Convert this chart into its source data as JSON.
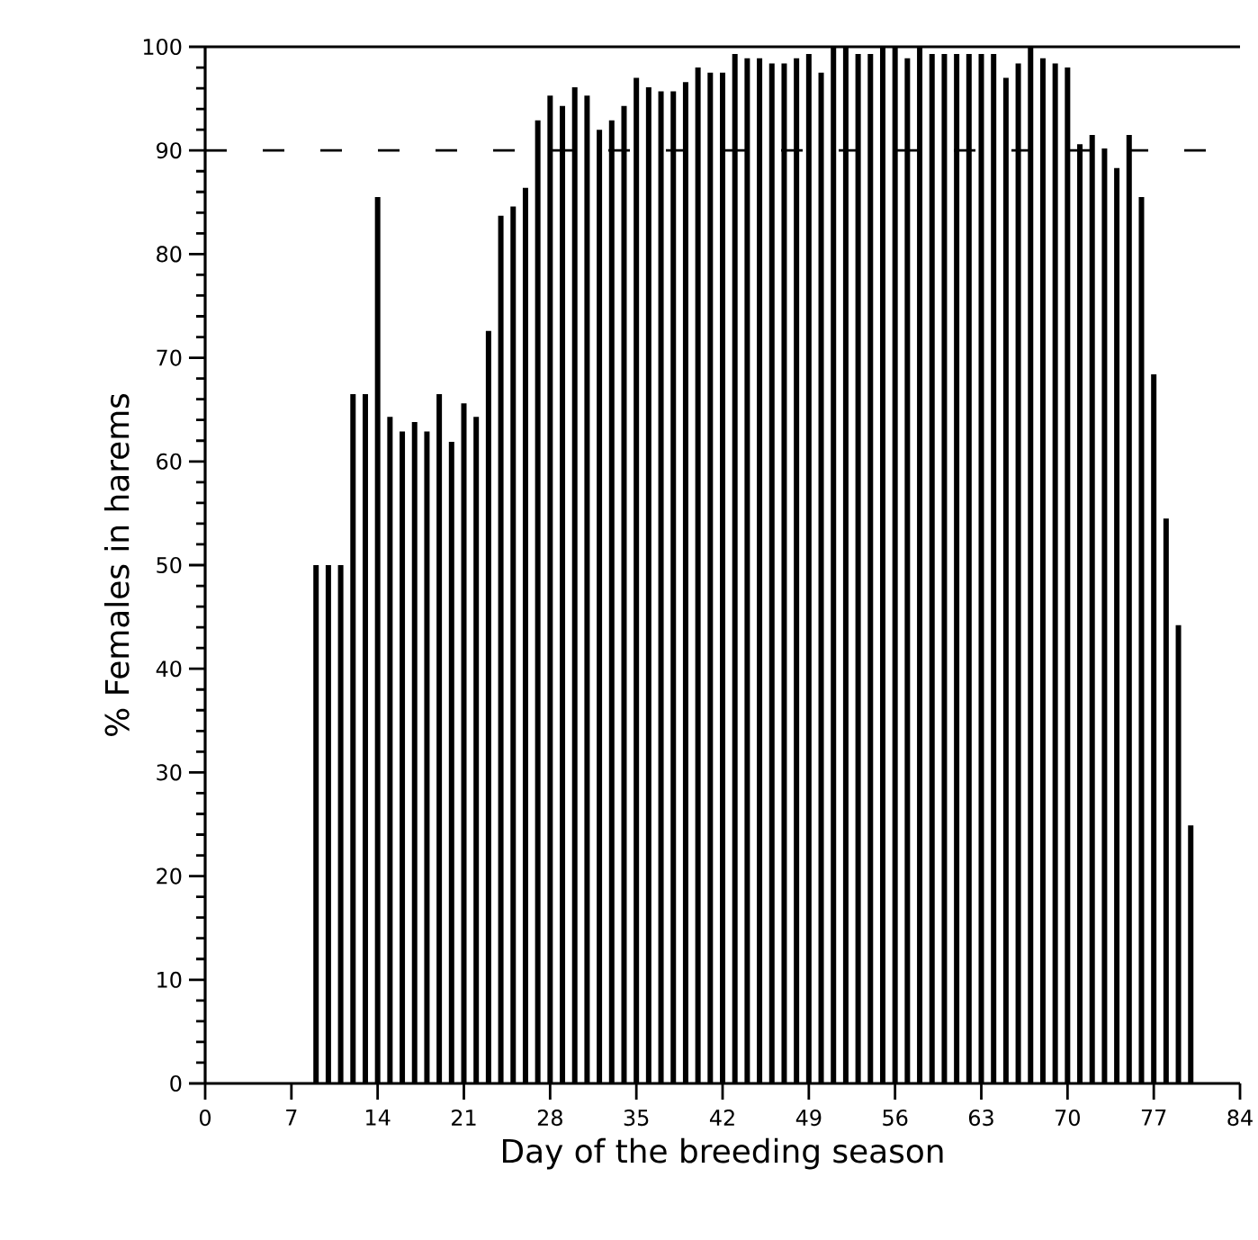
{
  "chart_data": {
    "type": "bar",
    "xlabel": "Day of the breeding season",
    "ylabel": "% Females in harems",
    "x": [
      9,
      10,
      11,
      12,
      13,
      14,
      15,
      16,
      17,
      18,
      19,
      20,
      21,
      22,
      23,
      24,
      25,
      26,
      27,
      28,
      29,
      30,
      31,
      32,
      33,
      34,
      35,
      36,
      37,
      38,
      39,
      40,
      41,
      42,
      43,
      44,
      45,
      46,
      47,
      48,
      49,
      50,
      51,
      52,
      53,
      54,
      55,
      56,
      57,
      58,
      59,
      60,
      61,
      62,
      63,
      64,
      65,
      66,
      67,
      68,
      69,
      70,
      71,
      72,
      73,
      74,
      75,
      76,
      77,
      78,
      79,
      80
    ],
    "values": [
      50,
      50,
      50,
      66.5,
      66.5,
      85.5,
      64.3,
      62.9,
      63.8,
      62.9,
      66.5,
      61.9,
      65.6,
      64.3,
      72.6,
      83.7,
      84.6,
      86.4,
      92.9,
      95.3,
      94.3,
      96.1,
      95.3,
      92.0,
      92.9,
      94.3,
      97.0,
      96.1,
      95.7,
      95.7,
      96.6,
      98.0,
      97.5,
      97.5,
      99.3,
      98.9,
      98.9,
      98.4,
      98.4,
      98.9,
      99.3,
      97.5,
      100,
      100,
      99.3,
      99.3,
      100,
      100,
      98.9,
      100,
      99.3,
      99.3,
      99.3,
      99.3,
      99.3,
      99.3,
      97.0,
      98.4,
      100,
      98.9,
      98.4,
      98.0,
      90.6,
      91.5,
      90.2,
      88.3,
      91.5,
      85.5,
      68.4,
      54.5,
      44.2,
      24.9
    ],
    "color": "#000000",
    "xlim": [
      0,
      84
    ],
    "ylim": [
      0,
      100
    ],
    "xticks": [
      0,
      7,
      14,
      21,
      28,
      35,
      42,
      49,
      56,
      63,
      70,
      77,
      84
    ],
    "yticks": [
      0,
      10,
      20,
      30,
      40,
      50,
      60,
      70,
      80,
      90,
      100
    ],
    "ref_lines": [
      {
        "axis": "y",
        "value": 90,
        "line_style": "dashed"
      }
    ]
  }
}
